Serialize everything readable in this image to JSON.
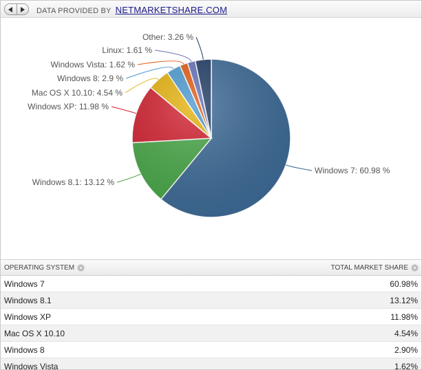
{
  "header": {
    "provided_by": "DATA PROVIDED BY",
    "source": "NETMARKETSHARE.COM"
  },
  "chart_data": {
    "type": "pie",
    "title": "",
    "labels": [
      "Windows 7",
      "Windows 8.1",
      "Windows XP",
      "Mac OS X 10.10",
      "Windows 8",
      "Windows Vista",
      "Linux",
      "Other"
    ],
    "values": [
      60.98,
      13.12,
      11.98,
      4.54,
      2.9,
      1.62,
      1.61,
      3.26
    ],
    "display_labels": [
      "Windows 7: 60.98 %",
      "Windows 8.1: 13.12 %",
      "Windows XP: 11.98 %",
      "Mac OS X 10.10: 4.54 %",
      "Windows 8: 2.9 %",
      "Windows Vista: 1.62 %",
      "Linux: 1.61 %",
      "Other: 3.26 %"
    ],
    "colors": [
      "#3d6a96",
      "#48a648",
      "#d0202e",
      "#e4b10c",
      "#4a98cf",
      "#e05a12",
      "#6470b8",
      "#1f3c64"
    ],
    "legend": "none"
  },
  "table": {
    "col_os": "OPERATING SYSTEM",
    "col_share": "TOTAL MARKET SHARE",
    "rows": [
      {
        "os": "Windows 7",
        "share": "60.98%"
      },
      {
        "os": "Windows 8.1",
        "share": "13.12%"
      },
      {
        "os": "Windows XP",
        "share": "11.98%"
      },
      {
        "os": "Mac OS X 10.10",
        "share": "4.54%"
      },
      {
        "os": "Windows 8",
        "share": "2.90%"
      },
      {
        "os": "Windows Vista",
        "share": "1.62%"
      }
    ]
  }
}
